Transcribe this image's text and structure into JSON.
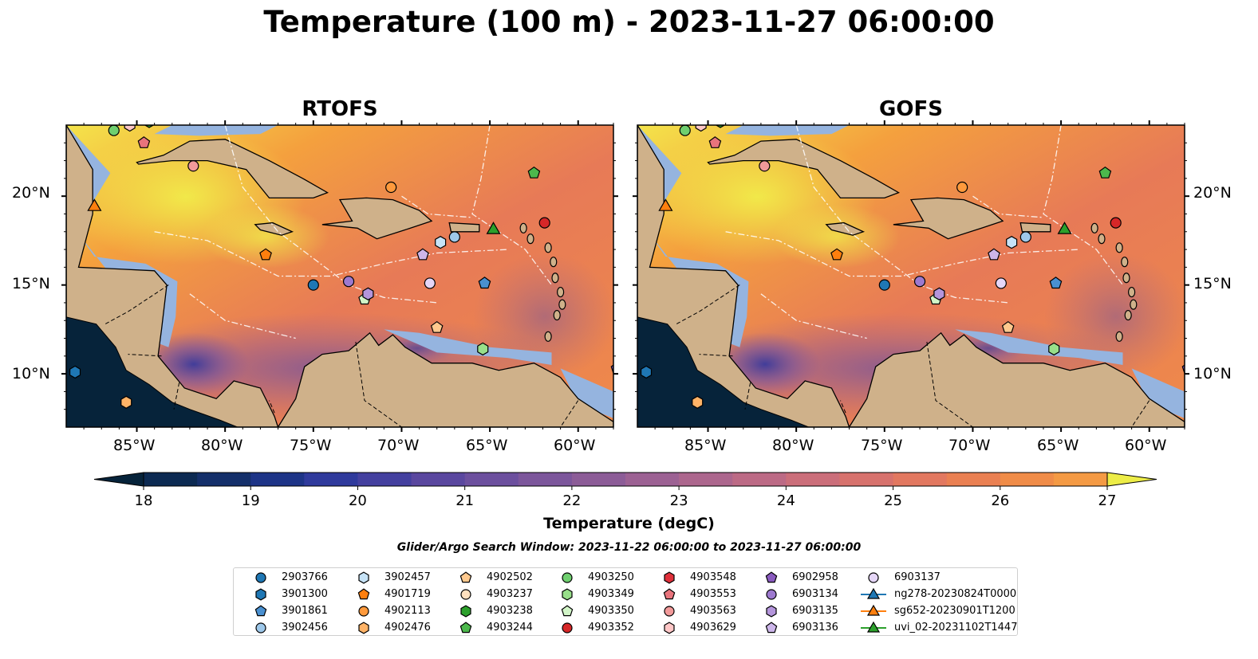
{
  "title": "Temperature (100 m) - 2023-11-27 06:00:00",
  "panels": [
    {
      "title": "RTOFS"
    },
    {
      "title": "GOFS"
    }
  ],
  "axes": {
    "lon_ticks": [
      "85°W",
      "80°W",
      "75°W",
      "70°W",
      "65°W",
      "60°W"
    ],
    "lat_ticks": [
      "20°N",
      "15°N",
      "10°N"
    ]
  },
  "colorbar": {
    "label": "Temperature (degC)",
    "min": 18,
    "max": 27,
    "step": 0.5,
    "ticks": [
      "18",
      "19",
      "20",
      "21",
      "22",
      "23",
      "24",
      "25",
      "26",
      "27"
    ],
    "extend": "both",
    "colors": [
      "#06233a",
      "#0c2a52",
      "#142f6a",
      "#1d3487",
      "#2f3a9c",
      "#44409f",
      "#5a479f",
      "#6c4f9e",
      "#7c569b",
      "#8c5c97",
      "#9c6193",
      "#ac668d",
      "#bc6a85",
      "#cb6e7a",
      "#d7726d",
      "#e27860",
      "#ea8052",
      "#f08c48",
      "#f49a44",
      "#f7aa40",
      "#f8bb3d",
      "#f7cc3c",
      "#f4dd3d",
      "#eded47"
    ]
  },
  "search_window": "Glider/Argo Search Window: 2023-11-22 06:00:00 to 2023-11-27 06:00:00",
  "legend": [
    {
      "label": "2903766",
      "marker": "circle",
      "color": "#1f77b4"
    },
    {
      "label": "3901300",
      "marker": "hexagon",
      "color": "#1f77b4"
    },
    {
      "label": "3901861",
      "marker": "pentagon",
      "color": "#4a90d0"
    },
    {
      "label": "3902456",
      "marker": "circle",
      "color": "#9ec8ea"
    },
    {
      "label": "3902457",
      "marker": "hexagon",
      "color": "#c6e3f7"
    },
    {
      "label": "4901719",
      "marker": "pentagon",
      "color": "#ff7f0e"
    },
    {
      "label": "4902113",
      "marker": "circle",
      "color": "#ff9a3c"
    },
    {
      "label": "4902476",
      "marker": "hexagon",
      "color": "#ffb367"
    },
    {
      "label": "4902502",
      "marker": "pentagon",
      "color": "#ffc98e"
    },
    {
      "label": "4903237",
      "marker": "circle",
      "color": "#ffe0bf"
    },
    {
      "label": "4903238",
      "marker": "hexagon",
      "color": "#2ca02c"
    },
    {
      "label": "4903244",
      "marker": "pentagon",
      "color": "#4cb84c"
    },
    {
      "label": "4903250",
      "marker": "circle",
      "color": "#6fcf6f"
    },
    {
      "label": "4903349",
      "marker": "hexagon",
      "color": "#98df8a"
    },
    {
      "label": "4903350",
      "marker": "pentagon",
      "color": "#d2f5c8"
    },
    {
      "label": "4903352",
      "marker": "circle",
      "color": "#d62728"
    },
    {
      "label": "4903548",
      "marker": "hexagon",
      "color": "#e0303a"
    },
    {
      "label": "4903553",
      "marker": "pentagon",
      "color": "#e8747c"
    },
    {
      "label": "4903563",
      "marker": "circle",
      "color": "#f29a9a"
    },
    {
      "label": "4903629",
      "marker": "hexagon",
      "color": "#ffc7c7"
    },
    {
      "label": "6902958",
      "marker": "pentagon",
      "color": "#8a5bbf"
    },
    {
      "label": "6903134",
      "marker": "circle",
      "color": "#9d79cf"
    },
    {
      "label": "6903135",
      "marker": "hexagon",
      "color": "#b495db"
    },
    {
      "label": "6903136",
      "marker": "pentagon",
      "color": "#cdb6ea"
    },
    {
      "label": "6903137",
      "marker": "circle",
      "color": "#e5d6f7"
    },
    {
      "label": "ng278-20230824T0000",
      "marker": "triangle-line",
      "color": "#1f77b4"
    },
    {
      "label": "sg652-20230901T1200",
      "marker": "triangle-line",
      "color": "#ff7f0e"
    },
    {
      "label": "uvi_02-20231102T1447",
      "marker": "triangle-line",
      "color": "#2ca02c"
    }
  ],
  "map_points": [
    {
      "id": "2903766",
      "lon": -75.0,
      "lat": 15.0
    },
    {
      "id": "3901300",
      "lon": -88.5,
      "lat": 10.1
    },
    {
      "id": "3901861",
      "lon": -65.3,
      "lat": 15.1
    },
    {
      "id": "3902456",
      "lon": -67.0,
      "lat": 17.7
    },
    {
      "id": "3902457",
      "lon": -67.8,
      "lat": 17.4
    },
    {
      "id": "4901719",
      "lon": -77.7,
      "lat": 16.7
    },
    {
      "id": "4902113",
      "lon": -70.6,
      "lat": 20.5
    },
    {
      "id": "4902476",
      "lon": -85.6,
      "lat": 8.4
    },
    {
      "id": "4902502",
      "lon": -68.0,
      "lat": 12.6
    },
    {
      "id": "4903238",
      "lon": -84.3,
      "lat": 24.2
    },
    {
      "id": "4903244",
      "lon": -62.5,
      "lat": 21.3
    },
    {
      "id": "4903250",
      "lon": -86.3,
      "lat": 23.7
    },
    {
      "id": "4903349",
      "lon": -65.4,
      "lat": 11.4
    },
    {
      "id": "4903350",
      "lon": -72.1,
      "lat": 14.2
    },
    {
      "id": "4903352",
      "lon": -61.9,
      "lat": 18.5
    },
    {
      "id": "4903553",
      "lon": -84.6,
      "lat": 23.0
    },
    {
      "id": "4903563",
      "lon": -81.8,
      "lat": 21.7
    },
    {
      "id": "4903629",
      "lon": -85.4,
      "lat": 24.0
    },
    {
      "id": "6902958",
      "lon": -57.8,
      "lat": 10.3
    },
    {
      "id": "6903134",
      "lon": -73.0,
      "lat": 15.2
    },
    {
      "id": "6903135",
      "lon": -71.9,
      "lat": 14.5
    },
    {
      "id": "6903136",
      "lon": -68.8,
      "lat": 16.7
    },
    {
      "id": "6903137",
      "lon": -68.4,
      "lat": 15.1
    },
    {
      "id": "sg652-20230901T1200",
      "lon": -87.4,
      "lat": 19.4
    },
    {
      "id": "uvi_02-20231102T1447",
      "lon": -64.8,
      "lat": 18.1
    }
  ]
}
